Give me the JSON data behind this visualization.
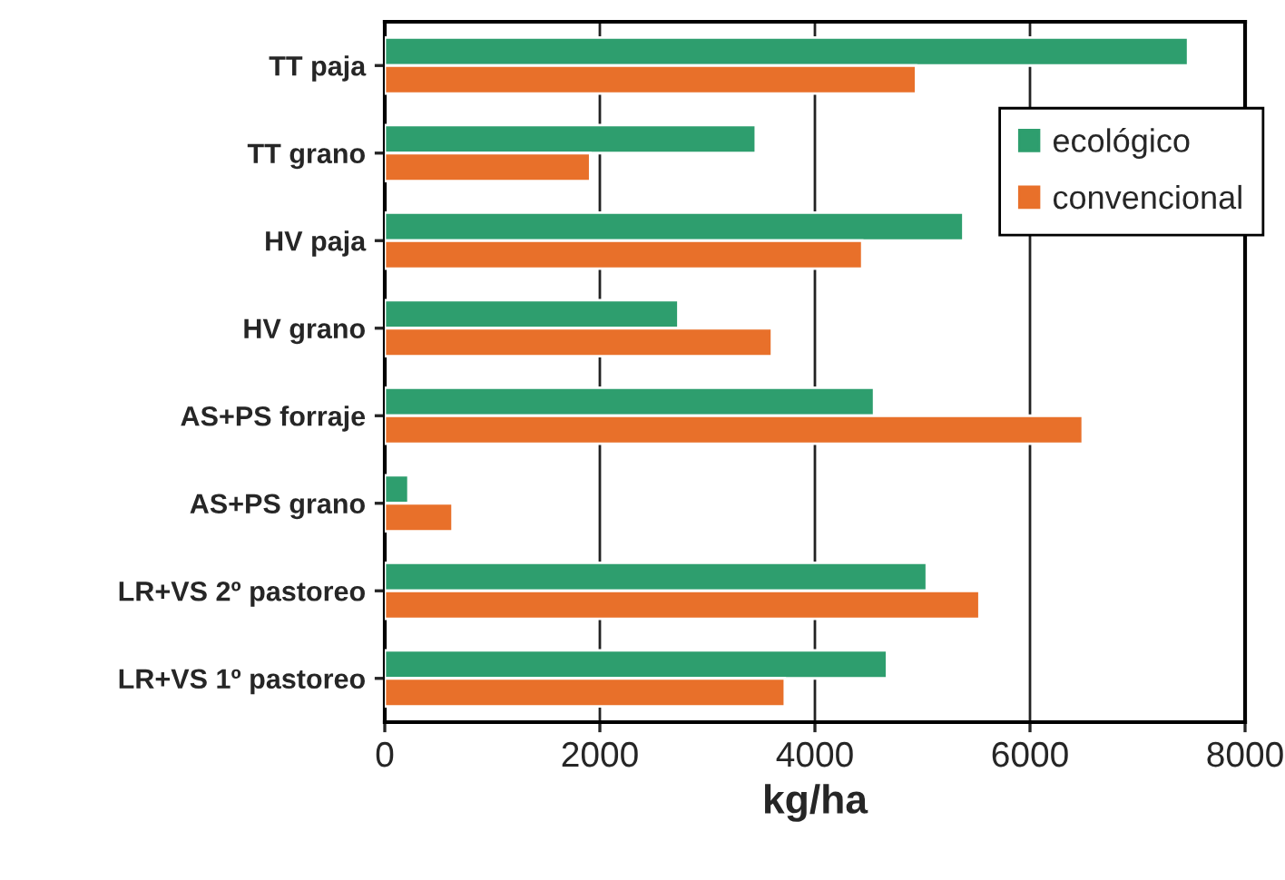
{
  "chart_data": {
    "type": "bar",
    "orientation": "horizontal",
    "xlabel": "kg/ha",
    "categories": [
      "TT paja",
      "TT grano",
      "HV paja",
      "HV grano",
      "AS+PS forraje",
      "AS+PS grano",
      "LR+VS 2º pastoreo",
      "LR+VS 1º pastoreo"
    ],
    "series": [
      {
        "name": "ecológico",
        "color": "#2e9e6e",
        "values": [
          7470,
          3450,
          5380,
          2730,
          4550,
          220,
          5040,
          4670
        ]
      },
      {
        "name": "convencional",
        "color": "#e8702a",
        "values": [
          4940,
          1910,
          4440,
          3600,
          6490,
          630,
          5530,
          3720
        ]
      }
    ],
    "xlim": [
      0,
      8000
    ],
    "xticks": [
      0,
      2000,
      4000,
      6000,
      8000
    ],
    "grid": "x",
    "legend": "top right"
  }
}
